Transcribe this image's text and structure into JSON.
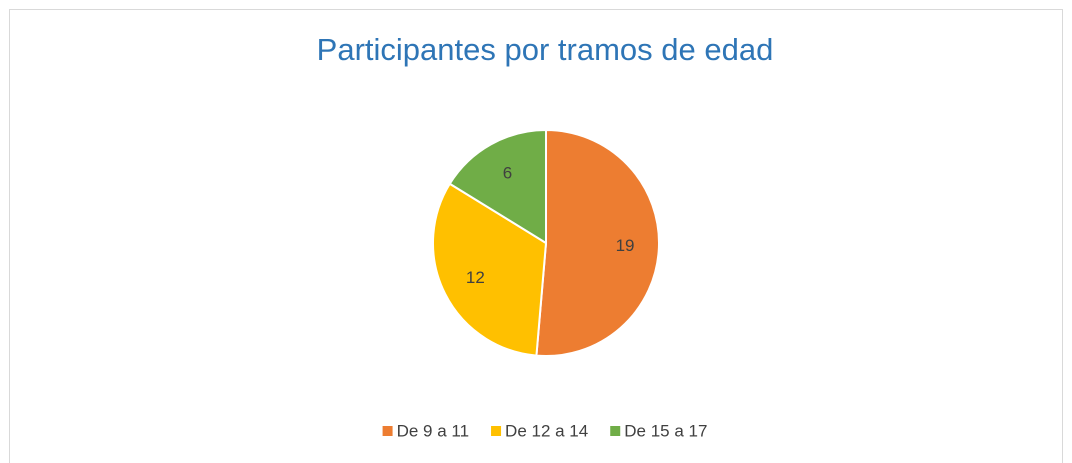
{
  "chart_data": {
    "type": "pie",
    "title": "Participantes por tramos de edad",
    "categories": [
      "De 9 a 11",
      "De 12 a 14",
      "De 15 a 17"
    ],
    "values": [
      19,
      12,
      6
    ],
    "colors": [
      "#ED7D31",
      "#FFC000",
      "#70AD47"
    ],
    "legend": "bottom"
  }
}
